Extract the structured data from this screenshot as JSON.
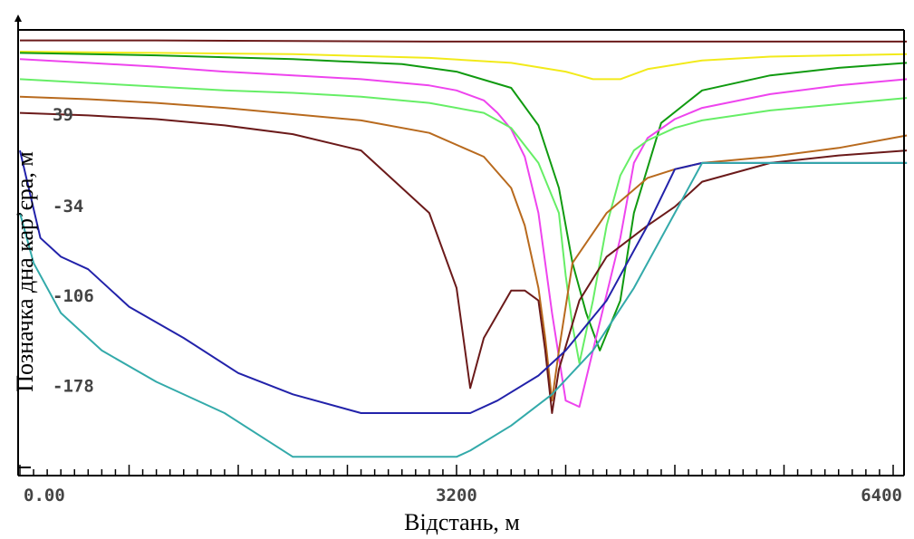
{
  "chart_data": {
    "type": "line",
    "xlabel": "Відстань, м",
    "ylabel": "Позначка дна кар’єра, м",
    "xlim": [
      0,
      6500
    ],
    "ylim": [
      -250,
      110
    ],
    "grid": false,
    "x_ticks": [
      {
        "value": 0,
        "label": "0.00"
      },
      {
        "value": 3200,
        "label": "3200"
      },
      {
        "value": 6400,
        "label": "6400"
      }
    ],
    "y_ticks": [
      {
        "value": 39,
        "label": "39"
      },
      {
        "value": -34,
        "label": "-34"
      },
      {
        "value": -106,
        "label": "-106"
      },
      {
        "value": -178,
        "label": "-178"
      }
    ],
    "series": [
      {
        "color": "#6b1a1a",
        "x": [
          0,
          1000,
          2000,
          3000,
          4000,
          5000,
          6000,
          6500
        ],
        "y": [
          98,
          98,
          97.5,
          97,
          97,
          97,
          97,
          97
        ]
      },
      {
        "color": "#f2ea1a",
        "x": [
          0,
          1000,
          2000,
          3000,
          3600,
          4000,
          4200,
          4400,
          4600,
          5000,
          5500,
          6000,
          6500
        ],
        "y": [
          89,
          88,
          87,
          84,
          80,
          73,
          67,
          67,
          75,
          82,
          85,
          86,
          87
        ]
      },
      {
        "color": "#109a10",
        "x": [
          0,
          1000,
          2000,
          2800,
          3200,
          3600,
          3800,
          3950,
          4050,
          4150,
          4250,
          4400,
          4500,
          4700,
          5000,
          5500,
          6000,
          6500
        ],
        "y": [
          88,
          86,
          83,
          79,
          73,
          60,
          30,
          -20,
          -80,
          -120,
          -150,
          -110,
          -40,
          32,
          58,
          70,
          76,
          80
        ]
      },
      {
        "color": "#ee44ee",
        "x": [
          0,
          500,
          1000,
          1500,
          2000,
          2500,
          3000,
          3200,
          3400,
          3500,
          3600,
          3700,
          3800,
          3850,
          3900,
          4000,
          4100,
          4200,
          4400,
          4500,
          4600,
          4800,
          5000,
          5500,
          6000,
          6500
        ],
        "y": [
          83,
          80,
          77,
          73,
          70,
          67,
          62,
          58,
          50,
          40,
          27,
          5,
          -40,
          -80,
          -120,
          -190,
          -195,
          -150,
          -60,
          0,
          20,
          35,
          44,
          55,
          62,
          67
        ]
      },
      {
        "color": "#66ee66",
        "x": [
          0,
          500,
          1000,
          1500,
          2000,
          2500,
          3000,
          3400,
          3600,
          3800,
          3950,
          4000,
          4050,
          4100,
          4200,
          4300,
          4400,
          4500,
          4600,
          4800,
          5000,
          5500,
          6000,
          6500
        ],
        "y": [
          67,
          64,
          61,
          58,
          56,
          53,
          48,
          40,
          28,
          0,
          -40,
          -90,
          -130,
          -160,
          -110,
          -50,
          -10,
          10,
          18,
          28,
          34,
          42,
          47,
          52
        ]
      },
      {
        "color": "#b86a1e",
        "x": [
          0,
          500,
          1000,
          1500,
          2000,
          2500,
          3000,
          3400,
          3600,
          3700,
          3800,
          3850,
          3900,
          3950,
          4050,
          4300,
          4600,
          4800,
          5000,
          5500,
          6000,
          6500
        ],
        "y": [
          53,
          51,
          48,
          44,
          39,
          34,
          24,
          5,
          -20,
          -50,
          -100,
          -140,
          -190,
          -150,
          -80,
          -40,
          -12,
          -5,
          0,
          5,
          12,
          22
        ]
      },
      {
        "color": "#6b1a1a",
        "x": [
          0,
          500,
          1000,
          1500,
          2000,
          2500,
          3000,
          3200,
          3300,
          3400,
          3600,
          3700,
          3800,
          3850,
          3900,
          3950,
          4100,
          4300,
          4600,
          4800,
          5000,
          5500,
          6000,
          6500
        ],
        "y": [
          40,
          38,
          35,
          30,
          23,
          10,
          -40,
          -100,
          -180,
          -140,
          -102,
          -102,
          -110,
          -150,
          -200,
          -165,
          -110,
          -75,
          -50,
          -35,
          -15,
          0,
          6,
          10
        ]
      },
      {
        "color": "#2222aa",
        "x": [
          0,
          150,
          300,
          500,
          800,
          1200,
          1600,
          2000,
          2500,
          3000,
          3200,
          3300,
          3500,
          3800,
          4000,
          4300,
          4600,
          4800,
          5000,
          6000,
          6500
        ],
        "y": [
          10,
          -60,
          -75,
          -85,
          -115,
          -140,
          -168,
          -185,
          -200,
          -200,
          -200,
          -200,
          -190,
          -170,
          -150,
          -110,
          -50,
          -5,
          0,
          0,
          0
        ]
      },
      {
        "color": "#33aaaa",
        "x": [
          0,
          100,
          300,
          600,
          1000,
          1500,
          2000,
          2500,
          3000,
          3200,
          3300,
          3600,
          3900,
          4200,
          4500,
          4800,
          5000,
          6000,
          6500
        ],
        "y": [
          -40,
          -80,
          -120,
          -150,
          -175,
          -200,
          -235,
          -235,
          -235,
          -235,
          -230,
          -210,
          -185,
          -150,
          -100,
          -40,
          0,
          0,
          0
        ]
      }
    ]
  }
}
